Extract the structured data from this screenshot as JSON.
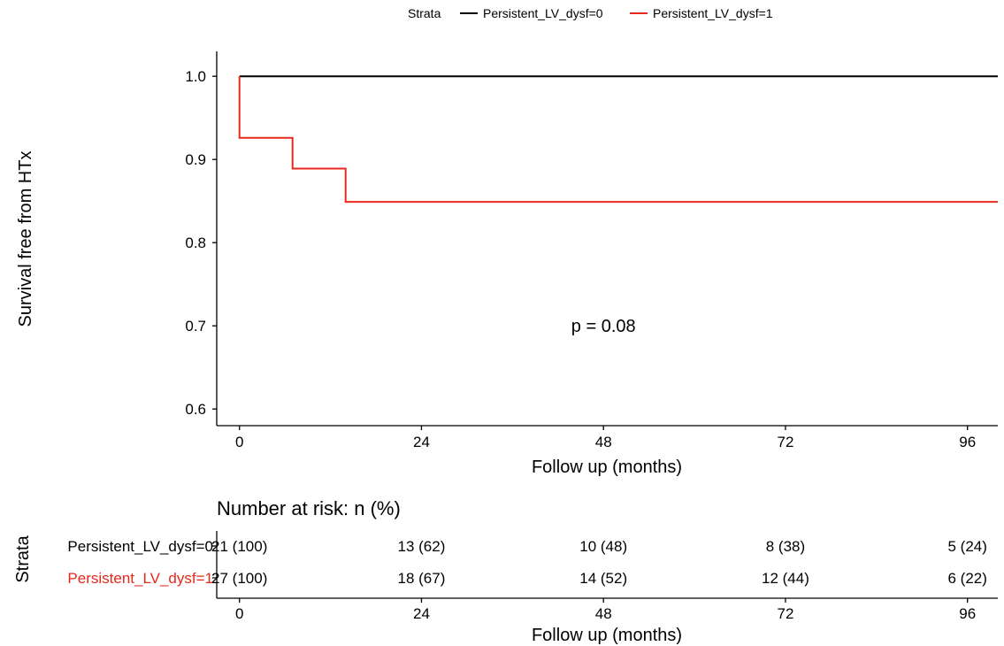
{
  "legend": {
    "title": "Strata",
    "items": [
      {
        "label": "Persistent_LV_dysf=0",
        "color": "#000000"
      },
      {
        "label": "Persistent_LV_dysf=1",
        "color": "#e8281c"
      }
    ]
  },
  "chart_data": {
    "type": "line",
    "subtype": "kaplan-meier-step",
    "ylabel": "Survival free from HTx",
    "xlabel": "Follow up (months)",
    "xlim": [
      -3,
      100
    ],
    "ylim": [
      0.58,
      1.03
    ],
    "xticks": [
      0,
      24,
      48,
      72,
      96
    ],
    "yticks": [
      "0.6",
      "0.7",
      "0.8",
      "0.9",
      "1.0"
    ],
    "grid": false,
    "legend_position": "top",
    "series": [
      {
        "name": "Persistent_LV_dysf=0",
        "color": "#000000",
        "x": [
          0,
          100
        ],
        "y": [
          1.0,
          1.0
        ]
      },
      {
        "name": "Persistent_LV_dysf=1",
        "color": "#e8281c",
        "x": [
          0,
          0,
          7,
          7,
          14,
          14,
          100
        ],
        "y": [
          1.0,
          0.926,
          0.926,
          0.889,
          0.889,
          0.849,
          0.849
        ]
      }
    ],
    "annotations": [
      {
        "text": "p = 0.08",
        "x": 48,
        "y": 0.7
      }
    ]
  },
  "risk_table": {
    "title": "Number at risk: n (%)",
    "ylabel": "Strata",
    "xlabel": "Follow up (months)",
    "xticks": [
      0,
      24,
      48,
      72,
      96
    ],
    "rows": [
      {
        "label": "Persistent_LV_dysf=0",
        "color": "#000000",
        "values": [
          "21 (100)",
          "13 (62)",
          "10 (48)",
          "8 (38)",
          "5 (24)"
        ]
      },
      {
        "label": "Persistent_LV_dysf=1",
        "color": "#e8281c",
        "values": [
          "27 (100)",
          "18 (67)",
          "14 (52)",
          "12 (44)",
          "6 (22)"
        ]
      }
    ]
  }
}
